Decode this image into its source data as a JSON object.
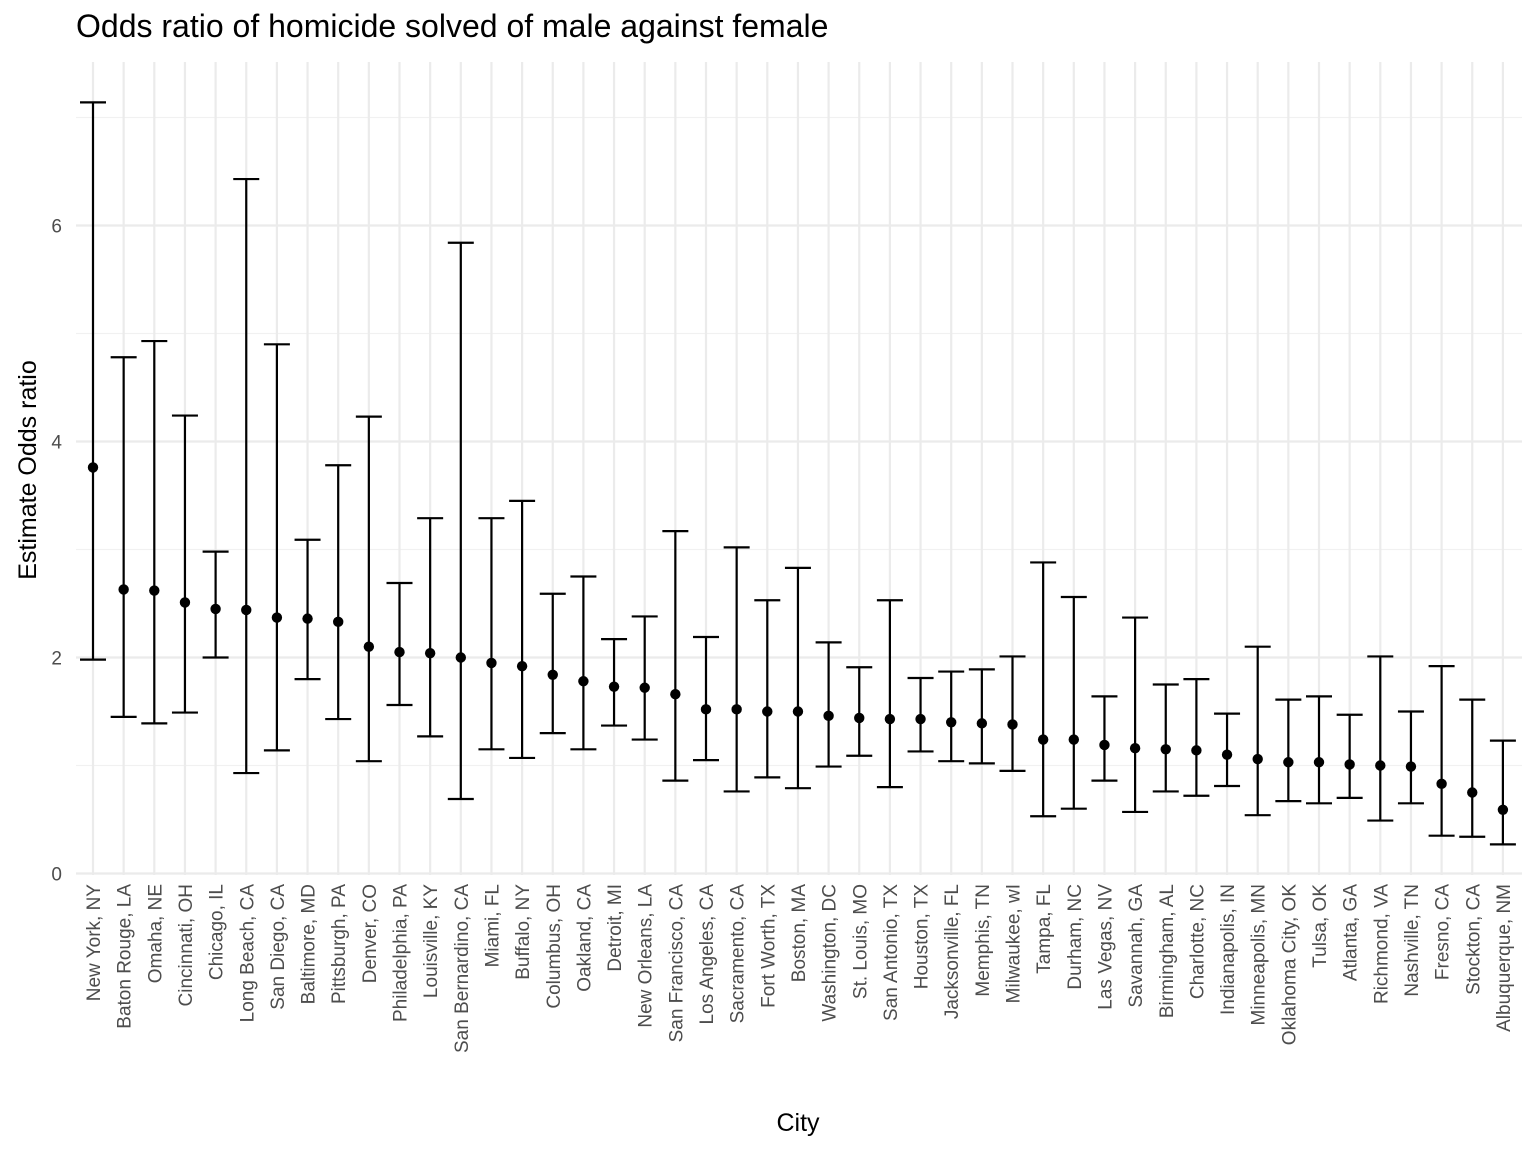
{
  "chart_data": {
    "type": "errorbar",
    "title": "Odds ratio of homicide solved of male against female",
    "xlabel": "City",
    "ylabel": "Estimate Odds ratio",
    "ylim": [
      0,
      7.3
    ],
    "yticks": [
      0,
      2,
      4,
      6
    ],
    "grid": true,
    "categories": [
      "New York, NY",
      "Baton Rouge, LA",
      "Omaha, NE",
      "Cincinnati, OH",
      "Chicago, IL",
      "Long Beach, CA",
      "San Diego, CA",
      "Baltimore, MD",
      "Pittsburgh, PA",
      "Denver, CO",
      "Philadelphia, PA",
      "Louisville, KY",
      "San Bernardino, CA",
      "Miami, FL",
      "Buffalo, NY",
      "Columbus, OH",
      "Oakland, CA",
      "Detroit, MI",
      "New Orleans, LA",
      "San Francisco, CA",
      "Los Angeles, CA",
      "Sacramento, CA",
      "Fort Worth, TX",
      "Boston, MA",
      "Washington, DC",
      "St. Louis, MO",
      "San Antonio, TX",
      "Houston, TX",
      "Jacksonville, FL",
      "Memphis, TN",
      "Milwaukee, wI",
      "Tampa, FL",
      "Durham, NC",
      "Las Vegas, NV",
      "Savannah, GA",
      "Birmingham, AL",
      "Charlotte, NC",
      "Indianapolis, IN",
      "Minneapolis, MN",
      "Oklahoma City, OK",
      "Tulsa, OK",
      "Atlanta, GA",
      "Richmond, VA",
      "Nashville, TN",
      "Fresno, CA",
      "Stockton, CA",
      "Albuquerque, NM"
    ],
    "estimate": [
      3.76,
      2.63,
      2.62,
      2.51,
      2.45,
      2.44,
      2.37,
      2.36,
      2.33,
      2.1,
      2.05,
      2.04,
      2.0,
      1.95,
      1.92,
      1.84,
      1.78,
      1.73,
      1.72,
      1.66,
      1.52,
      1.52,
      1.5,
      1.5,
      1.46,
      1.44,
      1.43,
      1.43,
      1.4,
      1.39,
      1.38,
      1.24,
      1.24,
      1.19,
      1.16,
      1.15,
      1.14,
      1.1,
      1.06,
      1.03,
      1.03,
      1.01,
      1.0,
      0.99,
      0.83,
      0.75,
      0.59
    ],
    "lower": [
      1.98,
      1.45,
      1.39,
      1.49,
      2.0,
      0.93,
      1.14,
      1.8,
      1.43,
      1.04,
      1.56,
      1.27,
      0.69,
      1.15,
      1.07,
      1.3,
      1.15,
      1.37,
      1.24,
      0.86,
      1.05,
      0.76,
      0.89,
      0.79,
      0.99,
      1.09,
      0.8,
      1.13,
      1.04,
      1.02,
      0.95,
      0.53,
      0.6,
      0.86,
      0.57,
      0.76,
      0.72,
      0.81,
      0.54,
      0.67,
      0.65,
      0.7,
      0.49,
      0.65,
      0.35,
      0.34,
      0.27
    ],
    "upper": [
      7.14,
      4.78,
      4.93,
      4.24,
      2.98,
      6.43,
      4.9,
      3.09,
      3.78,
      4.23,
      2.69,
      3.29,
      5.84,
      3.29,
      3.45,
      2.59,
      2.75,
      2.17,
      2.38,
      3.17,
      2.19,
      3.02,
      2.53,
      2.83,
      2.14,
      1.91,
      2.53,
      1.81,
      1.87,
      1.89,
      2.01,
      2.88,
      2.56,
      1.64,
      2.37,
      1.75,
      1.8,
      1.48,
      2.1,
      1.61,
      1.64,
      1.47,
      2.01,
      1.5,
      1.92,
      1.61,
      1.23
    ]
  }
}
